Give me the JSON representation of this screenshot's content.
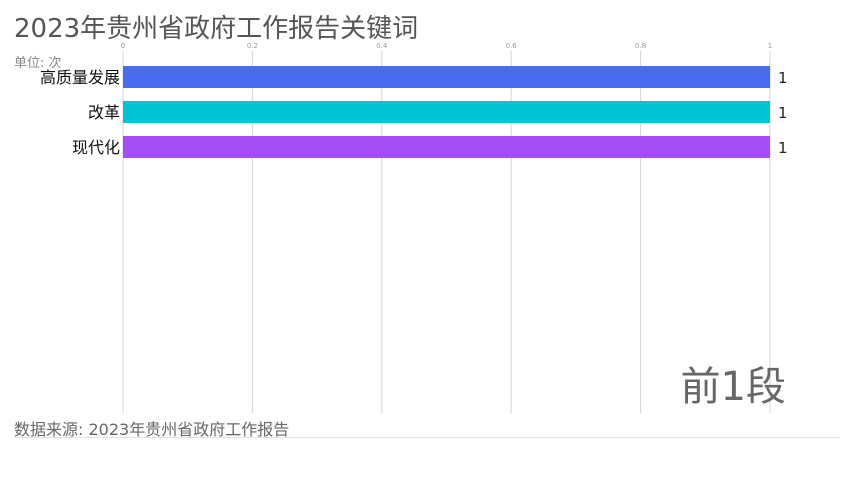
{
  "title": "2023年贵州省政府工作报告关键词",
  "unit_label": "单位: 次",
  "source_label": "数据来源: 2023年贵州省政府工作报告",
  "stage_label": "前1段",
  "chart_data": {
    "type": "bar",
    "orientation": "horizontal",
    "categories": [
      "高质量发展",
      "改革",
      "现代化"
    ],
    "values": [
      1,
      1,
      1
    ],
    "value_labels": [
      "1",
      "1",
      "1"
    ],
    "colors": [
      "#4a6cf2",
      "#00c4d4",
      "#a44cf6"
    ],
    "xlim": [
      0,
      1
    ],
    "x_ticks": [
      0,
      0.2,
      0.4,
      0.6,
      0.8,
      1
    ],
    "x_tick_labels": [
      "0",
      "0.2",
      "0.4",
      "0.6",
      "0.8",
      "1"
    ],
    "grid": true,
    "axis_position": "top",
    "title": "2023年贵州省政府工作报告关键词",
    "xlabel": "",
    "ylabel": ""
  }
}
